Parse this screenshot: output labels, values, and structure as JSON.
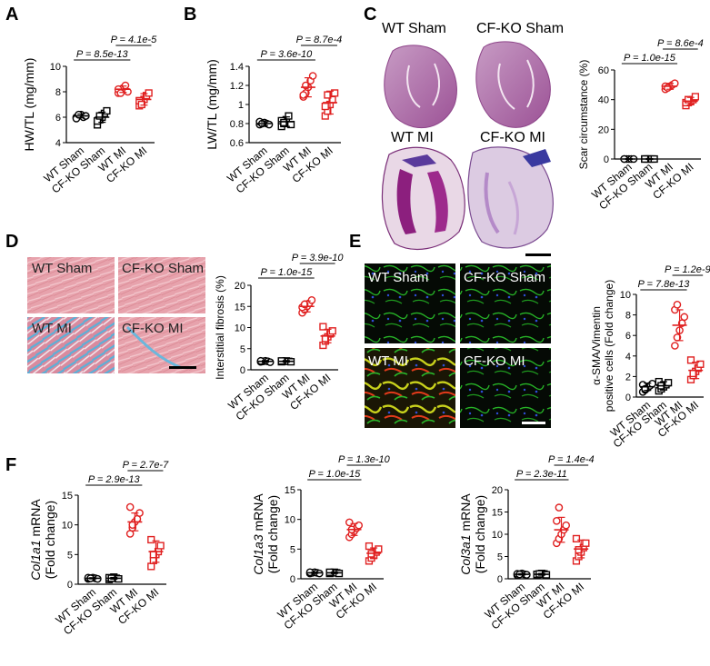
{
  "panel_labels": [
    "A",
    "B",
    "C",
    "D",
    "E",
    "F"
  ],
  "groups": [
    "WT Sham",
    "CF-KO Sham",
    "WT MI",
    "CF-KO MI"
  ],
  "image_labels": {
    "C": [
      "WT Sham",
      "CF-KO Sham",
      "WT MI",
      "CF-KO MI"
    ],
    "D": [
      "WT Sham",
      "CF-KO Sham",
      "WT MI",
      "CF-KO MI"
    ],
    "E": [
      "WT Sham",
      "CF-KO Sham",
      "WT MI",
      "CF-KO MI"
    ]
  },
  "colors": {
    "sham": "#000000",
    "mi": "#e02020"
  },
  "chart_data": [
    {
      "id": "A",
      "type": "scatter",
      "ylabel": "HW/TL (mg/mm)",
      "ylim": [
        4,
        10
      ],
      "yticks": [
        4,
        6,
        8,
        10
      ],
      "categories": [
        "WT Sham",
        "CF-KO Sham",
        "WT MI",
        "CF-KO MI"
      ],
      "markers": [
        "circle",
        "square",
        "circle",
        "square"
      ],
      "means": [
        6.1,
        6.0,
        8.2,
        7.4
      ],
      "sd": [
        0.15,
        0.4,
        0.25,
        0.45
      ],
      "points": [
        [
          6.0,
          6.1,
          6.2,
          6.0,
          6.1,
          5.9,
          6.2
        ],
        [
          5.4,
          5.8,
          6.0,
          6.3,
          6.5,
          5.7,
          6.1
        ],
        [
          7.9,
          8.1,
          8.3,
          8.5,
          8.0,
          8.2,
          7.9
        ],
        [
          6.9,
          7.1,
          7.4,
          7.7,
          7.9,
          7.3,
          7.0
        ]
      ],
      "comparisons": [
        {
          "text": "P = 8.5e-13",
          "from": 0,
          "to": 2
        },
        {
          "text": "P = 4.1e-5",
          "from": 2,
          "to": 3
        }
      ]
    },
    {
      "id": "B",
      "type": "scatter",
      "ylabel": "LW/TL (mg/mm)",
      "ylim": [
        0.6,
        1.4
      ],
      "yticks": [
        0.6,
        0.8,
        1.0,
        1.2,
        1.4
      ],
      "categories": [
        "WT Sham",
        "CF-KO Sham",
        "WT MI",
        "CF-KO MI"
      ],
      "markers": [
        "circle",
        "square",
        "circle",
        "square"
      ],
      "means": [
        0.8,
        0.82,
        1.18,
        1.02
      ],
      "sd": [
        0.02,
        0.05,
        0.1,
        0.12
      ],
      "points": [
        [
          0.79,
          0.8,
          0.81,
          0.8,
          0.79,
          0.82,
          0.8
        ],
        [
          0.77,
          0.8,
          0.84,
          0.88,
          0.79,
          0.83,
          0.81
        ],
        [
          1.08,
          1.12,
          1.18,
          1.25,
          1.3,
          1.1,
          1.2
        ],
        [
          0.88,
          0.93,
          1.0,
          1.05,
          1.12,
          0.98,
          1.1
        ]
      ],
      "comparisons": [
        {
          "text": "P = 3.6e-10",
          "from": 0,
          "to": 2
        },
        {
          "text": "P = 8.7e-4",
          "from": 2,
          "to": 3
        }
      ]
    },
    {
      "id": "C",
      "type": "scatter",
      "ylabel": "Scar circumstance (%)",
      "ylim": [
        0,
        60
      ],
      "yticks": [
        0,
        20,
        40,
        60
      ],
      "categories": [
        "WT Sham",
        "CF-KO Sham",
        "WT MI",
        "CF-KO MI"
      ],
      "markers": [
        "circle",
        "square",
        "circle",
        "square"
      ],
      "means": [
        0,
        0,
        49,
        39
      ],
      "sd": [
        0.3,
        0.3,
        2,
        2.5
      ],
      "points": [
        [
          0,
          0,
          0,
          0,
          0,
          0
        ],
        [
          0,
          0,
          0,
          0,
          0,
          0
        ],
        [
          47,
          48,
          49,
          50,
          51,
          49,
          48
        ],
        [
          36,
          38,
          39,
          40,
          42,
          38,
          40
        ]
      ],
      "comparisons": [
        {
          "text": "P = 1.0e-15",
          "from": 0,
          "to": 2
        },
        {
          "text": "P = 8.6e-4",
          "from": 2,
          "to": 3
        }
      ]
    },
    {
      "id": "D",
      "type": "scatter",
      "ylabel": "Interstitial fibrosis (%)",
      "ylim": [
        0,
        20
      ],
      "yticks": [
        0,
        5,
        10,
        15,
        20
      ],
      "categories": [
        "WT Sham",
        "CF-KO Sham",
        "WT MI",
        "CF-KO MI"
      ],
      "markers": [
        "circle",
        "square",
        "circle",
        "square"
      ],
      "means": [
        2,
        2,
        15,
        8
      ],
      "sd": [
        0.2,
        0.2,
        1.3,
        1.6
      ],
      "points": [
        [
          1.9,
          2.0,
          2.1,
          2.0,
          1.8,
          2.1
        ],
        [
          1.9,
          2.0,
          2.1,
          2.0,
          1.9,
          2.1
        ],
        [
          13.5,
          14.2,
          15,
          15.8,
          16.5,
          14.8,
          15.5
        ],
        [
          5.8,
          6.8,
          7.8,
          8.5,
          9.2,
          10.2,
          7.4
        ]
      ],
      "comparisons": [
        {
          "text": "P = 1.0e-15",
          "from": 0,
          "to": 2
        },
        {
          "text": "P = 3.9e-10",
          "from": 2,
          "to": 3
        }
      ]
    },
    {
      "id": "E",
      "type": "scatter",
      "ylabel": "α-SMA/Vimentin positive cells (Fold change)",
      "ylabel_lines": [
        "α-SMA/Vimentin",
        "positive cells (Fold change)"
      ],
      "ylim": [
        0,
        10
      ],
      "yticks": [
        0,
        2,
        4,
        6,
        8,
        10
      ],
      "categories": [
        "WT Sham",
        "CF-KO Sham",
        "WT MI",
        "CF-KO MI"
      ],
      "markers": [
        "circle",
        "square",
        "circle",
        "square"
      ],
      "means": [
        1,
        1.1,
        7,
        2.6
      ],
      "sd": [
        0.35,
        0.4,
        1.5,
        0.8
      ],
      "points": [
        [
          0.5,
          0.7,
          0.9,
          1.1,
          1.3,
          1.2,
          0.8
        ],
        [
          0.6,
          0.8,
          1.0,
          1.2,
          1.4,
          1.5,
          1.1
        ],
        [
          5.0,
          5.8,
          6.5,
          7.2,
          7.8,
          8.5,
          9.0
        ],
        [
          1.7,
          2.1,
          2.5,
          2.8,
          3.2,
          3.6,
          2.3
        ]
      ],
      "comparisons": [
        {
          "text": "P = 7.8e-13",
          "from": 0,
          "to": 2
        },
        {
          "text": "P = 1.2e-9",
          "from": 2,
          "to": 3
        }
      ]
    },
    {
      "id": "F1",
      "type": "scatter",
      "ylabel_gene": "Col1a1",
      "ylabel_rest": " mRNA",
      "ylabel2": "(Fold change)",
      "ylim": [
        0,
        15
      ],
      "yticks": [
        0,
        5,
        10,
        15
      ],
      "categories": [
        "WT Sham",
        "CF-KO Sham",
        "WT MI",
        "CF-KO MI"
      ],
      "markers": [
        "circle",
        "square",
        "circle",
        "square"
      ],
      "means": [
        1,
        1,
        10.5,
        5.5
      ],
      "sd": [
        0.1,
        0.15,
        1.5,
        1.8
      ],
      "points": [
        [
          0.9,
          1.0,
          1.1,
          1.0,
          0.9,
          1.1,
          1.0
        ],
        [
          0.8,
          1.0,
          1.2,
          1.0,
          0.9,
          1.1,
          1.0
        ],
        [
          8.5,
          9.5,
          10.5,
          11,
          12,
          13,
          10
        ],
        [
          3,
          4,
          5,
          5.5,
          6.5,
          7.5,
          5
        ]
      ],
      "comparisons": [
        {
          "text": "P = 2.9e-13",
          "from": 0,
          "to": 2
        },
        {
          "text": "P = 2.7e-7",
          "from": 2,
          "to": 3
        }
      ]
    },
    {
      "id": "F2",
      "type": "scatter",
      "ylabel_gene": "Col1a3",
      "ylabel_rest": " mRNA",
      "ylabel2": "(Fold change)",
      "ylim": [
        0,
        15
      ],
      "yticks": [
        0,
        5,
        10,
        15
      ],
      "categories": [
        "WT Sham",
        "CF-KO Sham",
        "WT MI",
        "CF-KO MI"
      ],
      "markers": [
        "circle",
        "square",
        "circle",
        "square"
      ],
      "means": [
        1,
        1,
        8.3,
        4.3
      ],
      "sd": [
        0.1,
        0.12,
        1.0,
        0.9
      ],
      "points": [
        [
          0.9,
          1.0,
          1.1,
          1.0,
          0.9,
          1.1
        ],
        [
          0.9,
          1.0,
          1.1,
          1.0,
          0.9,
          1.1
        ],
        [
          7,
          7.5,
          8,
          8.5,
          9,
          9.5,
          8.3
        ],
        [
          3,
          3.5,
          4,
          4.5,
          5,
          5.5,
          4.2
        ]
      ],
      "comparisons": [
        {
          "text": "P = 1.0e-15",
          "from": 0,
          "to": 2
        },
        {
          "text": "P = 1.3e-10",
          "from": 2,
          "to": 3
        }
      ]
    },
    {
      "id": "F3",
      "type": "scatter",
      "ylabel_gene": "Col3a1",
      "ylabel_rest": " mRNA",
      "ylabel2": "(Fold change)",
      "ylim": [
        0,
        20
      ],
      "yticks": [
        0,
        5,
        10,
        15,
        20
      ],
      "categories": [
        "WT Sham",
        "CF-KO Sham",
        "WT MI",
        "CF-KO MI"
      ],
      "markers": [
        "circle",
        "square",
        "circle",
        "square"
      ],
      "means": [
        1,
        1,
        11,
        6.7
      ],
      "sd": [
        0.15,
        0.2,
        2.8,
        2.0
      ],
      "points": [
        [
          0.8,
          1.0,
          1.2,
          1.0,
          0.9,
          1.1,
          1.0
        ],
        [
          0.8,
          1.0,
          1.2,
          1.1,
          0.9,
          1.0,
          1.1
        ],
        [
          8,
          9,
          10,
          11,
          12,
          13,
          16
        ],
        [
          4,
          5,
          6,
          7,
          8,
          9,
          6.5
        ]
      ],
      "comparisons": [
        {
          "text": "P = 2.3e-11",
          "from": 0,
          "to": 2
        },
        {
          "text": "P = 1.4e-4",
          "from": 2,
          "to": 3
        }
      ]
    }
  ]
}
